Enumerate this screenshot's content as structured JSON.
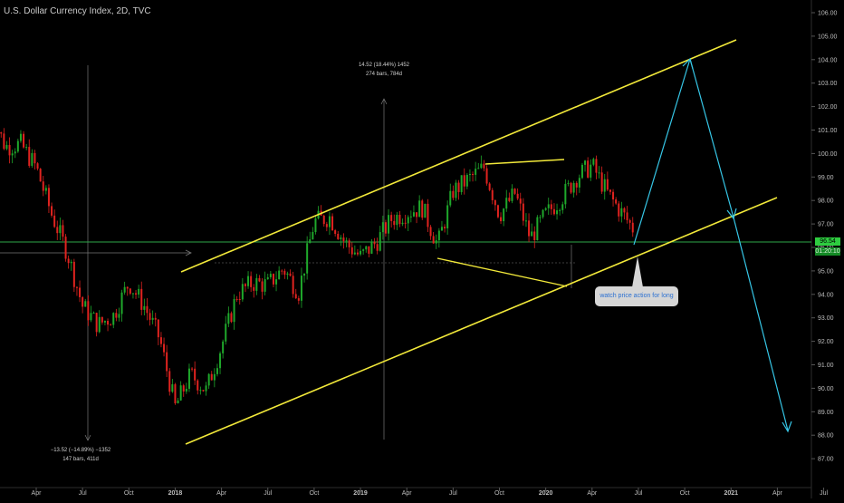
{
  "title": "U.S. Dollar Currency Index, 2D, TVC",
  "colors": {
    "background": "#000000",
    "up_candle": "#1fa82b",
    "down_candle": "#e0231f",
    "channel": "#f2e93a",
    "arrow": "#36c6e6",
    "hline": "#2ea84a",
    "price_badge": "#2ecc40",
    "axis_text": "#bdbdbd"
  },
  "annotations": {
    "measure1_line1": "−13.52 (−14.89%) −1352",
    "measure1_line2": "147 bars, 411d",
    "measure2_line1": "14.52 (18.44%) 1452",
    "measure2_line2": "274 bars, 784d"
  },
  "callout_text": "watch price action for long",
  "price_labels": {
    "current": "96.54",
    "countdown": "01:20:10"
  },
  "chart_data": {
    "type": "line",
    "title": "U.S. Dollar Currency Index, 2D, TVC",
    "xlabel": "",
    "ylabel": "",
    "x_ticks": [
      "Apr",
      "Jul",
      "Oct",
      "2018",
      "Apr",
      "Jul",
      "Oct",
      "2019",
      "Apr",
      "Jul",
      "Oct",
      "2020",
      "Apr",
      "Jul",
      "Oct",
      "2021",
      "Apr",
      "Jul"
    ],
    "y_ticks": [
      "106.00",
      "105.00",
      "104.00",
      "103.00",
      "102.00",
      "101.00",
      "100.00",
      "99.00",
      "98.00",
      "97.00",
      "96.00",
      "95.00",
      "94.00",
      "93.00",
      "92.00",
      "91.00",
      "90.00",
      "89.00",
      "88.00",
      "87.00"
    ],
    "ylim": [
      86.5,
      106.6
    ],
    "grid": false,
    "series": [
      {
        "x": [
          "2017-01",
          "2017-02",
          "2017-03",
          "2017-04",
          "2017-05",
          "2017-06",
          "2017-07",
          "2017-08",
          "2017-09",
          "2017-10",
          "2017-11",
          "2017-12",
          "2018-01",
          "2018-02",
          "2018-03",
          "2018-04",
          "2018-05",
          "2018-06",
          "2018-07",
          "2018-08",
          "2018-09",
          "2018-10",
          "2018-11",
          "2018-12",
          "2019-01",
          "2019-02",
          "2019-03",
          "2019-04",
          "2019-05",
          "2019-06",
          "2019-07",
          "2019-08",
          "2019-09",
          "2019-10",
          "2019-11",
          "2019-12",
          "2020-01",
          "2020-02",
          "2020-03",
          "2020-04",
          "2020-05",
          "2020-06",
          "2020-07"
        ],
        "values": [
          101.8,
          100.3,
          100.4,
          99.4,
          97.4,
          95.8,
          93.5,
          92.7,
          93.1,
          94.5,
          93.5,
          92.1,
          89.2,
          90.6,
          89.9,
          91.8,
          94.0,
          94.5,
          94.4,
          95.1,
          94.1,
          97.1,
          97.3,
          96.2,
          95.6,
          96.2,
          97.2,
          97.5,
          97.7,
          96.1,
          98.4,
          98.9,
          99.4,
          97.4,
          98.3,
          96.4,
          97.4,
          98.1,
          99.0,
          99.5,
          98.3,
          97.4,
          96.5
        ]
      }
    ],
    "annotations": [
      "watch price action for long",
      "−13.52 (−14.89%) −1352",
      "147 bars, 411d",
      "14.52 (18.44%) 1452",
      "274 bars, 784d"
    ]
  }
}
